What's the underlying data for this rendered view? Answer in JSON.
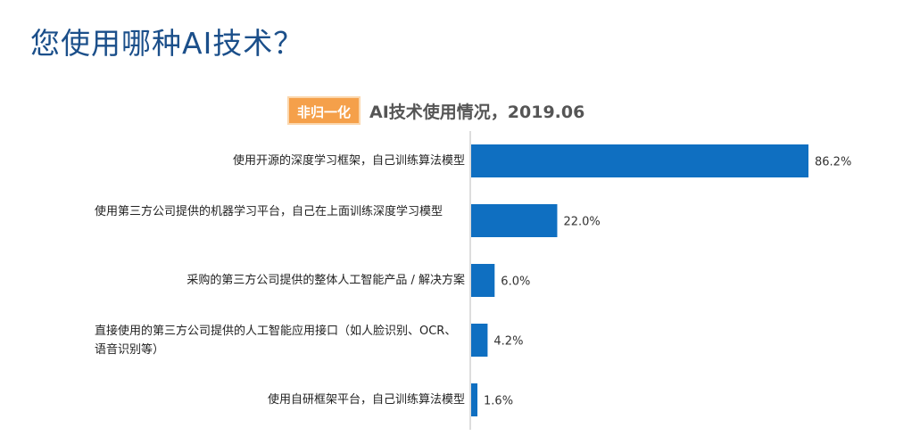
{
  "page": {
    "title": "您使用哪种AI技术？"
  },
  "chart_data": {
    "type": "bar",
    "orientation": "horizontal",
    "badge": "非归一化",
    "title": "AI技术使用情况，2019.06",
    "categories": [
      "使用开源的深度学习框架，自己训练算法模型",
      "使用第三方公司提供的机器学习平台，自己在上面训练深度学习模型",
      "采购的第三方公司提供的整体人工智能产品 / 解决方案",
      "直接使用的第三方公司提供的人工智能应用接口（如人脸识别、OCR、语音识别等）",
      "使用自研框架平台，自己训练算法模型"
    ],
    "values": [
      86.2,
      22.0,
      6.0,
      4.2,
      1.6
    ],
    "value_labels": [
      "86.2%",
      "22.0%",
      "6.0%",
      "4.2%",
      "1.6%"
    ],
    "unit": "%",
    "xlim": [
      0,
      100
    ],
    "bar_color": "#0f6fc1",
    "badge_color": "#f5a04a",
    "title_color": "#1b4f8a",
    "grid": false,
    "legend": "none"
  }
}
